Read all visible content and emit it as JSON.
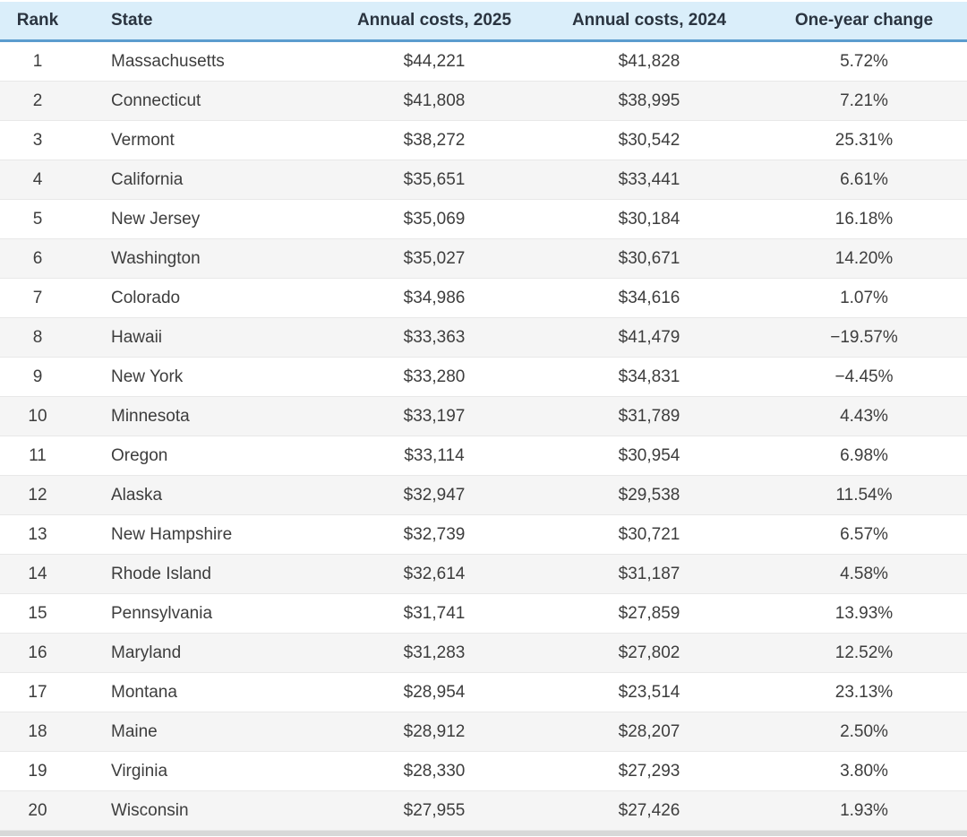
{
  "chart_data": {
    "type": "table",
    "columns": [
      "Rank",
      "State",
      "Annual costs, 2025",
      "Annual costs, 2024",
      "One-year change"
    ],
    "rows": [
      [
        "1",
        "Massachusetts",
        "$44,221",
        "$41,828",
        "5.72%"
      ],
      [
        "2",
        "Connecticut",
        "$41,808",
        "$38,995",
        "7.21%"
      ],
      [
        "3",
        "Vermont",
        "$38,272",
        "$30,542",
        "25.31%"
      ],
      [
        "4",
        "California",
        "$35,651",
        "$33,441",
        "6.61%"
      ],
      [
        "5",
        "New Jersey",
        "$35,069",
        "$30,184",
        "16.18%"
      ],
      [
        "6",
        "Washington",
        "$35,027",
        "$30,671",
        "14.20%"
      ],
      [
        "7",
        "Colorado",
        "$34,986",
        "$34,616",
        "1.07%"
      ],
      [
        "8",
        "Hawaii",
        "$33,363",
        "$41,479",
        "−19.57%"
      ],
      [
        "9",
        "New York",
        "$33,280",
        "$34,831",
        "−4.45%"
      ],
      [
        "10",
        "Minnesota",
        "$33,197",
        "$31,789",
        "4.43%"
      ],
      [
        "11",
        "Oregon",
        "$33,114",
        "$30,954",
        "6.98%"
      ],
      [
        "12",
        "Alaska",
        "$32,947",
        "$29,538",
        "11.54%"
      ],
      [
        "13",
        "New Hampshire",
        "$32,739",
        "$30,721",
        "6.57%"
      ],
      [
        "14",
        "Rhode Island",
        "$32,614",
        "$31,187",
        "4.58%"
      ],
      [
        "15",
        "Pennsylvania",
        "$31,741",
        "$27,859",
        "13.93%"
      ],
      [
        "16",
        "Maryland",
        "$31,283",
        "$27,802",
        "12.52%"
      ],
      [
        "17",
        "Montana",
        "$28,954",
        "$23,514",
        "23.13%"
      ],
      [
        "18",
        "Maine",
        "$28,912",
        "$28,207",
        "2.50%"
      ],
      [
        "19",
        "Virginia",
        "$28,330",
        "$27,293",
        "3.80%"
      ],
      [
        "20",
        "Wisconsin",
        "$27,955",
        "$27,426",
        "1.93%"
      ]
    ]
  },
  "colors": {
    "header_background": "#daeefa",
    "header_border": "#5b9cce",
    "header_text": "#2a3440",
    "body_text": "#3d3d3d",
    "row_stripe": "#f5f5f5",
    "row_border": "#e8e8e8",
    "bottom_strip": "#d8d8d8"
  }
}
